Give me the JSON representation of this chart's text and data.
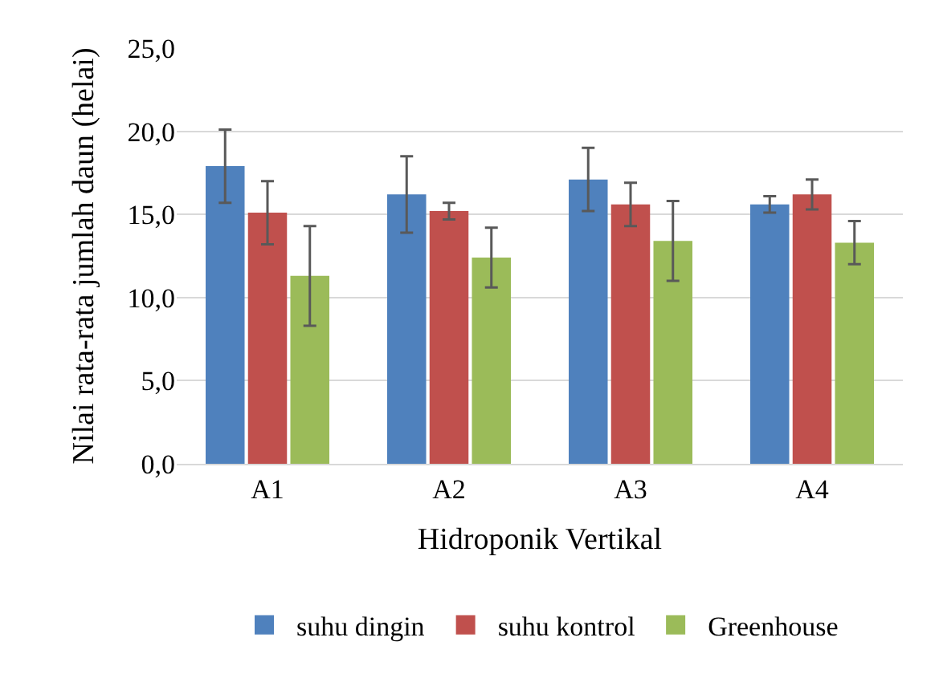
{
  "chart_data": {
    "type": "bar",
    "xlabel": "Hidroponik Vertikal",
    "ylabel": "Nilai rata-rata jumlah daun (helai)",
    "categories": [
      "A1",
      "A2",
      "A3",
      "A4"
    ],
    "series": [
      {
        "name": "suhu dingin",
        "color": "#4f81bd",
        "values": [
          17.9,
          16.2,
          17.1,
          15.6
        ],
        "errors": [
          2.2,
          2.3,
          1.9,
          0.5
        ]
      },
      {
        "name": "suhu kontrol",
        "color": "#c0504d",
        "values": [
          15.1,
          15.2,
          15.6,
          16.2
        ],
        "errors": [
          1.9,
          0.5,
          1.3,
          0.9
        ]
      },
      {
        "name": "Greenhouse",
        "color": "#9bbb59",
        "values": [
          11.3,
          12.4,
          13.4,
          13.3
        ],
        "errors": [
          3.0,
          1.8,
          2.4,
          1.3
        ]
      }
    ],
    "ylim": [
      0,
      25
    ],
    "yticks": [
      {
        "value": 0,
        "label": "0,0"
      },
      {
        "value": 5,
        "label": "5,0"
      },
      {
        "value": 10,
        "label": "10,0"
      },
      {
        "value": 15,
        "label": "15,0"
      },
      {
        "value": 20,
        "label": "20,0"
      },
      {
        "value": 25,
        "label": "25,0"
      }
    ],
    "grid": "y",
    "legend": "bottom"
  }
}
